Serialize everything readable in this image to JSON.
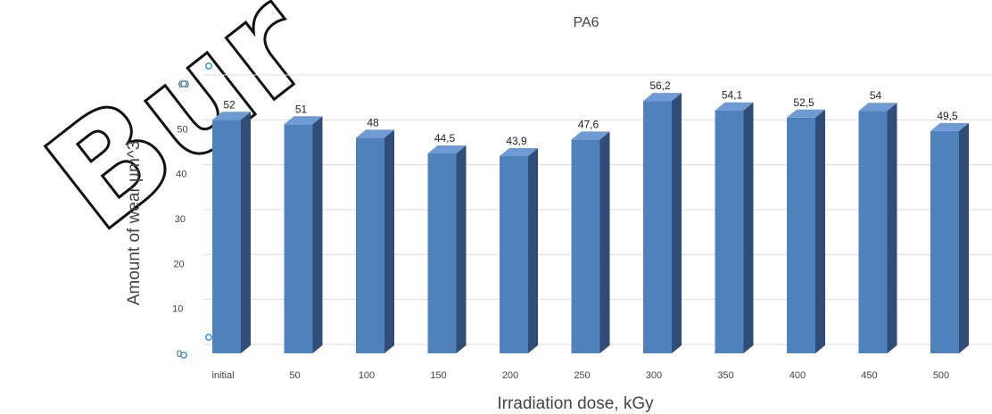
{
  "watermark_text": "Bur",
  "chart_data": {
    "type": "bar",
    "title": "PA6",
    "xlabel": "Irradiation dose, kGy",
    "ylabel": "Amount of wear µm^3",
    "categories": [
      "initial",
      "50",
      "100",
      "150",
      "200",
      "250",
      "300",
      "350",
      "400",
      "450",
      "500"
    ],
    "values": [
      52,
      51,
      48,
      44.5,
      43.9,
      47.6,
      56.2,
      54.1,
      52.5,
      54,
      49.5
    ],
    "value_labels": [
      "52",
      "51",
      "48",
      "44,5",
      "43,9",
      "47,6",
      "56,2",
      "54,1",
      "52,5",
      "54",
      "49,5"
    ],
    "ylim": [
      0,
      60
    ],
    "yticks": [
      0,
      10,
      20,
      30,
      40,
      50,
      60
    ],
    "grid": true,
    "style": "3d-column",
    "colors": {
      "bar_front": "#4f81bd",
      "bar_side": "#2f4d77",
      "bar_top": "#6f9bd4",
      "grid": "#d9d9d9",
      "handle": "#2e8bc9"
    }
  }
}
